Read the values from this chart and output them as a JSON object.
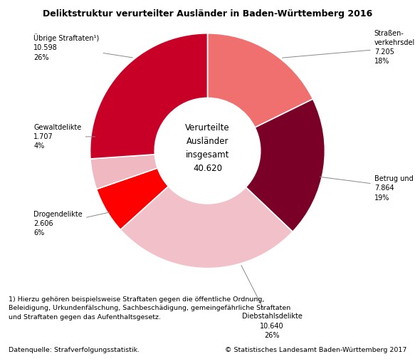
{
  "title": "Deliktstruktur verurteilter Ausländer in Baden-Württemberg 2016",
  "center_text": "Verurteilte\nAusländer\ninsgesamt\n40.620",
  "slices": [
    {
      "label": "Straßen-\nverkehrsdelikte\n7.205\n18%",
      "value": 7205,
      "color": "#F07070",
      "pct": 18
    },
    {
      "label": "Betrug und Untreue\n7.864\n19%",
      "value": 7864,
      "color": "#7B0028",
      "pct": 19
    },
    {
      "label": "Diebstahlsdelikte\n10.640\n26%",
      "value": 10640,
      "color": "#F2C0C8",
      "pct": 26
    },
    {
      "label": "Drogendelikte\n2.606\n6%",
      "value": 2606,
      "color": "#FF0000",
      "pct": 6
    },
    {
      "label": "Gewaltdelikte\n1.707\n4%",
      "value": 1707,
      "color": "#F0B8C0",
      "pct": 4
    },
    {
      "label": "Übrige Straftaten¹)\n10.598\n26%",
      "value": 10598,
      "color": "#C80028",
      "pct": 26
    }
  ],
  "footnote": "1) Hierzu gehören beispielsweise Straftaten gegen die öffentliche Ordnung,\nBeleidigung, Urkundenfälschung, Sachbeschädigung, gemeingefährliche Straftaten\nund Straftaten gegen das Aufenthaltsgesetz.",
  "source_left": "Datenquelle: Strafverfolgungsstatistik.",
  "source_right": "© Statistisches Landesamt Baden-Württemberg 2017",
  "background_color": "#ffffff"
}
